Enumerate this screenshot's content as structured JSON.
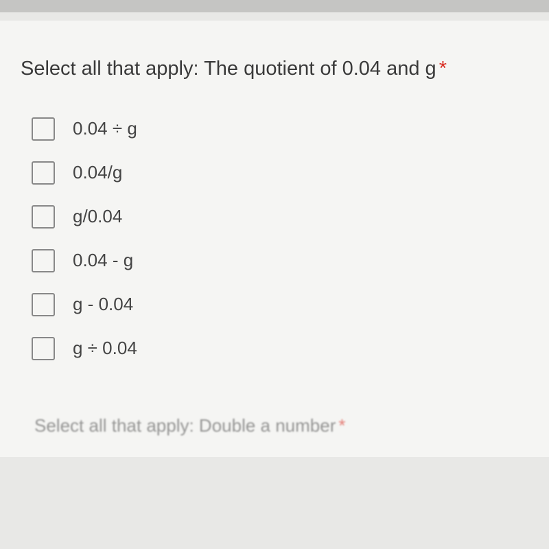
{
  "question": {
    "text": "Select all that apply: The quotient of 0.04 and g",
    "required_mark": "*"
  },
  "options": [
    {
      "label": "0.04 ÷ g"
    },
    {
      "label": "0.04/g"
    },
    {
      "label": "g/0.04"
    },
    {
      "label": "0.04 - g"
    },
    {
      "label": "g - 0.04"
    },
    {
      "label": "g ÷ 0.04"
    }
  ],
  "partial_next": {
    "text": "Select all that apply: Double a number",
    "required_mark": "*"
  },
  "colors": {
    "background": "#e8e8e6",
    "card_background": "#f5f5f3",
    "top_bar": "#c5c5c3",
    "text_primary": "#3a3a3a",
    "text_option": "#444444",
    "checkbox_border": "#888888",
    "required": "#d93025"
  }
}
